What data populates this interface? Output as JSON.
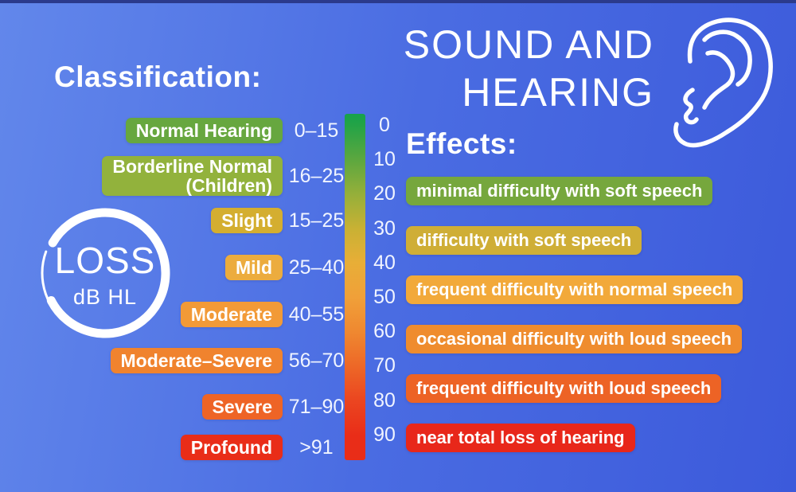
{
  "title": {
    "line1": "SOUND AND",
    "line2": "HEARING"
  },
  "colors": {
    "top_bar": "#2b3a8c",
    "bg_left": "#6287eb",
    "bg_mid": "#4a6ce2",
    "bg_right": "#3c5adb",
    "text": "#ffffff"
  },
  "loss_badge": {
    "line1": "LOSS",
    "line2": "dB HL"
  },
  "classification": {
    "heading": "Classification:",
    "rows": [
      {
        "label": "Normal Hearing",
        "range": "0–15",
        "color": "#67a73f"
      },
      {
        "label": "Borderline Normal\n(Children)",
        "range": "16–25",
        "color": "#92b23c"
      },
      {
        "label": "Slight",
        "range": "15–25",
        "color": "#d4ae30"
      },
      {
        "label": "Mild",
        "range": "25–40",
        "color": "#ecac3e"
      },
      {
        "label": "Moderate",
        "range": "40–55",
        "color": "#f29a37"
      },
      {
        "label": "Moderate–Severe",
        "range": "56–70",
        "color": "#f0832e"
      },
      {
        "label": "Severe",
        "range": "71–90",
        "color": "#ee6426"
      },
      {
        "label": "Profound",
        "range": ">91",
        "color": "#e92d18"
      }
    ]
  },
  "scale": {
    "unit_ticks": [
      "0",
      "10",
      "20",
      "30",
      "40",
      "50",
      "60",
      "70",
      "80",
      "90"
    ],
    "gradient_stops": [
      {
        "pos": 0,
        "color": "#17a24c"
      },
      {
        "pos": 3,
        "color": "#22a347"
      },
      {
        "pos": 13,
        "color": "#5ba73f"
      },
      {
        "pos": 23,
        "color": "#94af3a"
      },
      {
        "pos": 33,
        "color": "#c8b134"
      },
      {
        "pos": 43,
        "color": "#e8ae37"
      },
      {
        "pos": 53,
        "color": "#f0a039"
      },
      {
        "pos": 63,
        "color": "#ef8830"
      },
      {
        "pos": 73,
        "color": "#ed6727"
      },
      {
        "pos": 83,
        "color": "#eb4520"
      },
      {
        "pos": 93,
        "color": "#e92d18"
      },
      {
        "pos": 100,
        "color": "#e92d18"
      }
    ]
  },
  "effects": {
    "heading": "Effects:",
    "items": [
      {
        "label": "minimal difficulty with soft speech",
        "color": "#76a73d"
      },
      {
        "label": "difficulty with soft speech",
        "color": "#cfae36"
      },
      {
        "label": "frequent difficulty with normal speech",
        "color": "#f2a93a"
      },
      {
        "label": "occasional difficulty with loud speech",
        "color": "#ef8c2e"
      },
      {
        "label": "frequent difficulty with loud speech",
        "color": "#ed6325"
      },
      {
        "label": "near total loss of hearing",
        "color": "#e8271a"
      }
    ]
  }
}
